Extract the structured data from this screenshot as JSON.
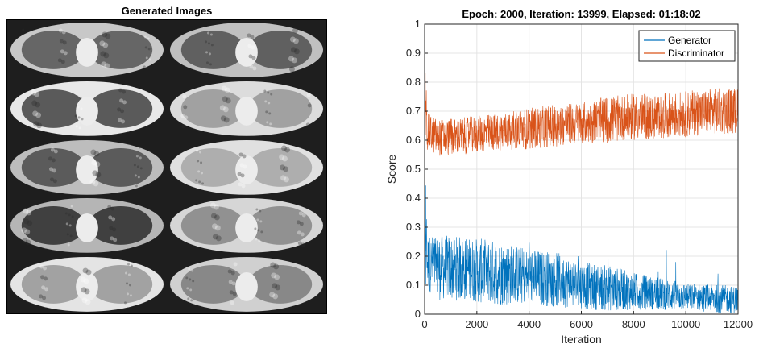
{
  "left_panel": {
    "title": "Generated Images",
    "tiles": [
      {
        "tone": "#5b5b5b",
        "bg": "#c8c8c8"
      },
      {
        "tone": "#555555",
        "bg": "#c0c0c0"
      },
      {
        "tone": "#4a4a4a",
        "bg": "#e8e8e8"
      },
      {
        "tone": "#9a9a9a",
        "bg": "#dcdcdc"
      },
      {
        "tone": "#505050",
        "bg": "#bdbdbd"
      },
      {
        "tone": "#a8a8a8",
        "bg": "#e0e0e0"
      },
      {
        "tone": "#333333",
        "bg": "#b5b5b5"
      },
      {
        "tone": "#8a8a8a",
        "bg": "#d6d6d6"
      },
      {
        "tone": "#9a9a9a",
        "bg": "#e4e4e4"
      },
      {
        "tone": "#808080",
        "bg": "#d0d0d0"
      }
    ]
  },
  "chart_data": {
    "type": "line",
    "title": "Epoch: 2000, Iteration: 13999, Elapsed: 01:18:02",
    "xlabel": "Iteration",
    "ylabel": "Score",
    "xlim": [
      0,
      12000
    ],
    "ylim": [
      0,
      1
    ],
    "xticks": [
      0,
      2000,
      4000,
      6000,
      8000,
      10000,
      12000
    ],
    "yticks": [
      0,
      0.1,
      0.2,
      0.3,
      0.4,
      0.5,
      0.6,
      0.7,
      0.8,
      0.9,
      1
    ],
    "grid": true,
    "legend": "top-right",
    "series": [
      {
        "name": "Generator",
        "color": "#0072bd",
        "x": [
          0,
          100,
          500,
          1000,
          2000,
          3000,
          4000,
          5000,
          6000,
          7000,
          8000,
          9000,
          10000,
          11000,
          12000
        ],
        "y": [
          0.5,
          0.18,
          0.16,
          0.16,
          0.15,
          0.14,
          0.13,
          0.12,
          0.1,
          0.09,
          0.08,
          0.07,
          0.06,
          0.055,
          0.05
        ],
        "noise": [
          0.02,
          0.06,
          0.07,
          0.07,
          0.07,
          0.07,
          0.06,
          0.06,
          0.05,
          0.05,
          0.04,
          0.035,
          0.03,
          0.03,
          0.03
        ]
      },
      {
        "name": "Discriminator",
        "color": "#d95319",
        "x": [
          0,
          100,
          500,
          1000,
          2000,
          3000,
          4000,
          5000,
          6000,
          7000,
          8000,
          9000,
          10000,
          11000,
          12000
        ],
        "y": [
          0.9,
          0.63,
          0.61,
          0.61,
          0.62,
          0.63,
          0.64,
          0.65,
          0.66,
          0.67,
          0.68,
          0.68,
          0.69,
          0.7,
          0.7
        ],
        "noise": [
          0.03,
          0.04,
          0.04,
          0.04,
          0.04,
          0.04,
          0.045,
          0.045,
          0.045,
          0.05,
          0.05,
          0.05,
          0.05,
          0.05,
          0.05
        ]
      }
    ]
  }
}
